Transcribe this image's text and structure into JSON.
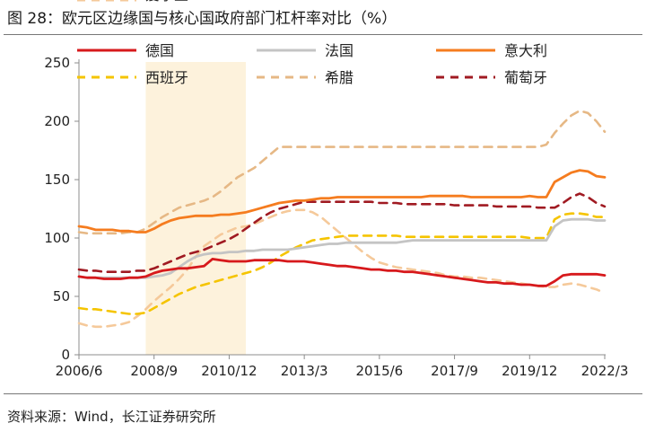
{
  "title": "图 28：欧元区边缘国与核心国政府部门杠杆率对比（%）",
  "source": "资料来源：Wind，长江证券研究所",
  "chart_data": {
    "type": "line",
    "title": "图 28：欧元区边缘国与核心国政府部门杠杆率对比（%）",
    "xlabel": "",
    "ylabel": "",
    "ylim": [
      0,
      250
    ],
    "yticks": [
      0,
      50,
      100,
      150,
      200,
      250
    ],
    "x_tick_labels": [
      "2006/6",
      "2008/9",
      "2010/12",
      "2013/3",
      "2015/6",
      "2017/9",
      "2019/12",
      "2022/3"
    ],
    "x_tick_index": [
      0,
      9,
      18,
      27,
      36,
      45,
      54,
      63
    ],
    "x_count": 64,
    "shaded_region": {
      "start_index": 8,
      "end_index": 20
    },
    "grid": false,
    "legend_position": "top",
    "series": [
      {
        "name": "德国",
        "color": "#d7191c",
        "dash": "solid",
        "values": [
          67,
          66,
          66,
          65,
          65,
          65,
          66,
          66,
          67,
          70,
          72,
          73,
          74,
          74,
          75,
          76,
          82,
          81,
          80,
          80,
          80,
          81,
          81,
          81,
          81,
          80,
          80,
          80,
          79,
          78,
          77,
          76,
          76,
          75,
          74,
          73,
          73,
          72,
          72,
          71,
          71,
          70,
          69,
          68,
          67,
          66,
          65,
          64,
          63,
          62,
          62,
          61,
          61,
          60,
          60,
          59,
          59,
          63,
          68,
          69,
          69,
          69,
          69,
          68
        ]
      },
      {
        "name": "法国",
        "color": "#c4c4c4",
        "dash": "solid",
        "values": [
          67,
          66,
          66,
          66,
          66,
          66,
          66,
          66,
          66,
          67,
          68,
          70,
          75,
          80,
          84,
          86,
          87,
          87,
          88,
          88,
          89,
          89,
          90,
          90,
          90,
          90,
          91,
          92,
          93,
          94,
          95,
          95,
          96,
          96,
          96,
          96,
          96,
          96,
          96,
          97,
          98,
          98,
          98,
          98,
          98,
          98,
          98,
          98,
          98,
          98,
          98,
          98,
          98,
          98,
          98,
          98,
          98,
          110,
          115,
          116,
          116,
          116,
          115,
          115
        ]
      },
      {
        "name": "意大利",
        "color": "#f57c1f",
        "dash": "solid",
        "values": [
          110,
          109,
          107,
          107,
          107,
          106,
          106,
          105,
          105,
          108,
          112,
          115,
          117,
          118,
          119,
          119,
          119,
          120,
          120,
          121,
          122,
          124,
          126,
          128,
          130,
          131,
          132,
          132,
          133,
          134,
          134,
          135,
          135,
          135,
          135,
          135,
          135,
          135,
          135,
          135,
          135,
          135,
          136,
          136,
          136,
          136,
          136,
          135,
          135,
          135,
          135,
          135,
          135,
          135,
          136,
          135,
          135,
          148,
          152,
          156,
          158,
          157,
          153,
          152
        ]
      },
      {
        "name": "西班牙",
        "color": "#f5c400",
        "dash": "dashed",
        "values": [
          40,
          39,
          39,
          38,
          37,
          36,
          35,
          35,
          36,
          40,
          44,
          48,
          52,
          55,
          58,
          60,
          62,
          64,
          66,
          68,
          70,
          72,
          75,
          79,
          84,
          88,
          92,
          95,
          98,
          99,
          100,
          101,
          102,
          102,
          102,
          102,
          102,
          102,
          102,
          101,
          101,
          101,
          101,
          101,
          101,
          101,
          101,
          101,
          101,
          101,
          101,
          101,
          101,
          101,
          100,
          100,
          100,
          116,
          120,
          121,
          121,
          120,
          118,
          118
        ]
      },
      {
        "name": "希腊",
        "color": "#e6b885",
        "dash": "dashed",
        "values": [
          105,
          104,
          104,
          104,
          104,
          104,
          105,
          105,
          108,
          113,
          118,
          122,
          126,
          128,
          130,
          132,
          135,
          140,
          146,
          152,
          156,
          160,
          166,
          172,
          178,
          178,
          178,
          178,
          178,
          178,
          178,
          178,
          178,
          178,
          178,
          178,
          178,
          178,
          178,
          178,
          178,
          178,
          178,
          178,
          178,
          178,
          178,
          178,
          178,
          178,
          178,
          178,
          178,
          178,
          178,
          178,
          180,
          190,
          198,
          205,
          209,
          207,
          200,
          191
        ]
      },
      {
        "name": "葡萄牙",
        "color": "#a01a22",
        "dash": "dashed",
        "values": [
          73,
          72,
          72,
          71,
          71,
          71,
          71,
          72,
          72,
          74,
          77,
          80,
          83,
          86,
          88,
          90,
          93,
          96,
          99,
          103,
          108,
          113,
          118,
          122,
          125,
          127,
          129,
          131,
          131,
          131,
          131,
          131,
          131,
          131,
          131,
          131,
          130,
          130,
          130,
          129,
          129,
          129,
          129,
          129,
          129,
          128,
          128,
          128,
          128,
          128,
          127,
          127,
          127,
          127,
          127,
          126,
          126,
          126,
          130,
          135,
          138,
          135,
          130,
          127
        ]
      },
      {
        "name": "爱尔兰",
        "color": "#f5c99a",
        "dash": "dashed",
        "values": [
          27,
          25,
          24,
          24,
          25,
          26,
          28,
          33,
          39,
          46,
          52,
          58,
          65,
          73,
          84,
          93,
          98,
          103,
          106,
          109,
          110,
          112,
          115,
          118,
          121,
          123,
          124,
          124,
          122,
          118,
          112,
          106,
          100,
          94,
          88,
          83,
          79,
          77,
          75,
          74,
          73,
          72,
          71,
          70,
          68,
          67,
          67,
          66,
          66,
          65,
          64,
          63,
          62,
          61,
          60,
          59,
          58,
          58,
          60,
          61,
          60,
          58,
          56,
          53
        ]
      }
    ]
  }
}
